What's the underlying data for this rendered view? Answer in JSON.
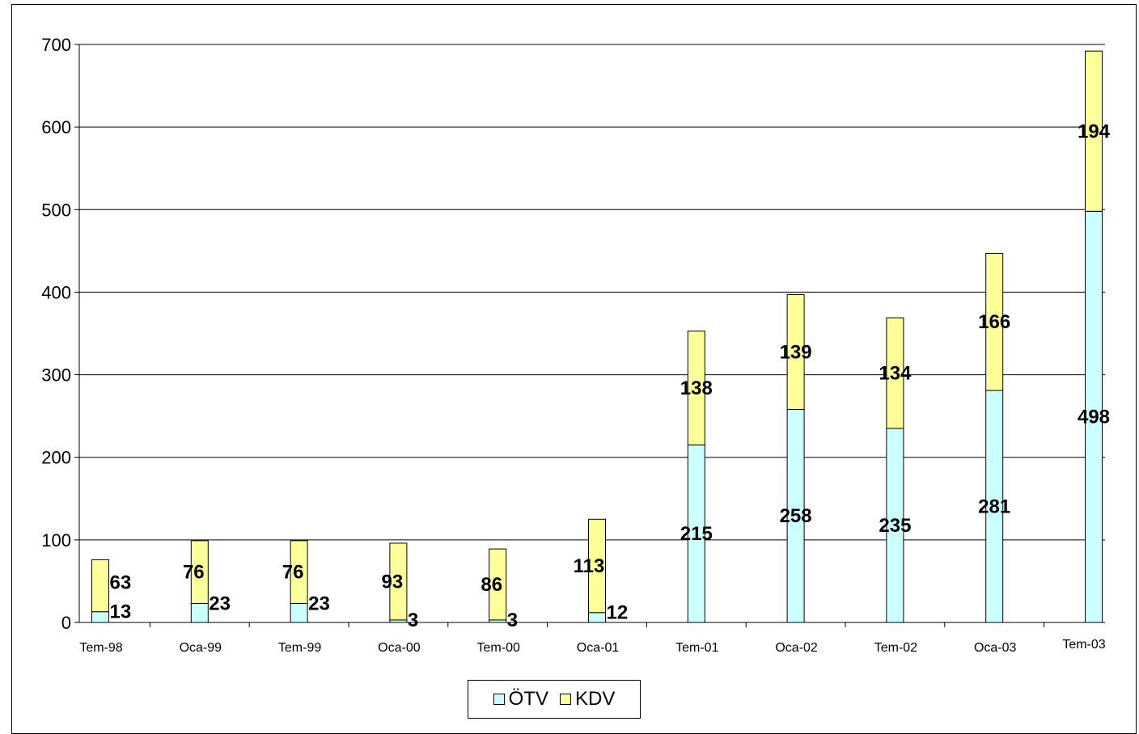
{
  "chart_data": {
    "type": "bar",
    "stacked": true,
    "categories": [
      "Tem-98",
      "Oca-99",
      "Tem-99",
      "Oca-00",
      "Tem-00",
      "Oca-01",
      "Tem-01",
      "Oca-02",
      "Tem-02",
      "Oca-03",
      "Tem-03"
    ],
    "series": [
      {
        "name": "ÖTV",
        "color": "#ccffff",
        "values": [
          13,
          23,
          23,
          3,
          3,
          12,
          215,
          258,
          235,
          281,
          498
        ],
        "labels": [
          "13",
          "23",
          "23",
          "3",
          "3",
          "12",
          "215",
          "258",
          "235",
          "281",
          "498"
        ]
      },
      {
        "name": "KDV",
        "color": "#ffff99",
        "values": [
          63,
          76,
          76,
          93,
          86,
          113,
          138,
          139,
          134,
          166,
          194
        ],
        "labels": [
          "63",
          "76",
          "76",
          "93",
          "86",
          "113",
          "138",
          "139",
          "134",
          "166",
          "194"
        ]
      }
    ],
    "title": "",
    "xlabel": "",
    "ylabel": "",
    "ylim": [
      0,
      700
    ],
    "yticks": [
      "0",
      "100",
      "200",
      "300",
      "400",
      "500",
      "600",
      "700"
    ],
    "grid": true,
    "legend_position": "bottom"
  }
}
